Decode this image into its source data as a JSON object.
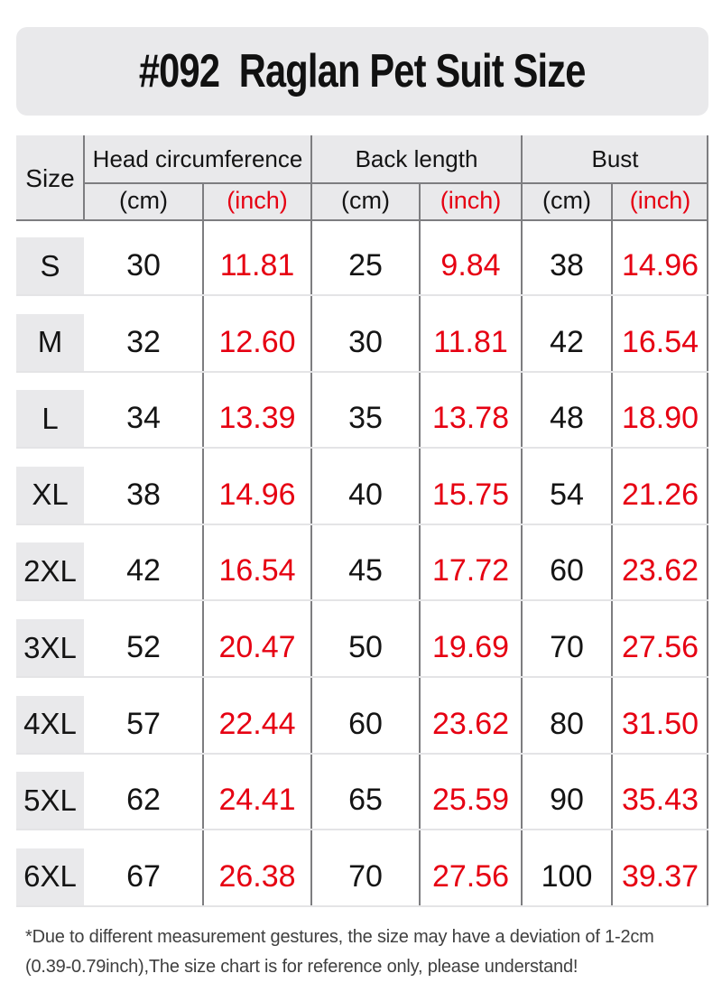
{
  "title": "#092  Raglan Pet Suit Size",
  "colors": {
    "accent_red": "#e60012",
    "panel_gray": "#e9e9eb",
    "grid_dark": "#7d7d80",
    "grid_light": "#e4e4e6",
    "text_black": "#141414",
    "footnote_gray": "#3f3f3f"
  },
  "table": {
    "size_header": "Size",
    "groups": [
      {
        "label": "Head circumference"
      },
      {
        "label": "Back length"
      },
      {
        "label": "Bust"
      }
    ],
    "unit_labels": [
      "(cm)",
      "(inch)",
      "(cm)",
      "(inch)",
      "(cm)",
      "(inch)"
    ],
    "rows": [
      {
        "size": "S",
        "values": [
          "30",
          "11.81",
          "25",
          "9.84",
          "38",
          "14.96"
        ]
      },
      {
        "size": "M",
        "values": [
          "32",
          "12.60",
          "30",
          "11.81",
          "42",
          "16.54"
        ]
      },
      {
        "size": "L",
        "values": [
          "34",
          "13.39",
          "35",
          "13.78",
          "48",
          "18.90"
        ]
      },
      {
        "size": "XL",
        "values": [
          "38",
          "14.96",
          "40",
          "15.75",
          "54",
          "21.26"
        ]
      },
      {
        "size": "2XL",
        "values": [
          "42",
          "16.54",
          "45",
          "17.72",
          "60",
          "23.62"
        ]
      },
      {
        "size": "3XL",
        "values": [
          "52",
          "20.47",
          "50",
          "19.69",
          "70",
          "27.56"
        ]
      },
      {
        "size": "4XL",
        "values": [
          "57",
          "22.44",
          "60",
          "23.62",
          "80",
          "31.50"
        ]
      },
      {
        "size": "5XL",
        "values": [
          "62",
          "24.41",
          "65",
          "25.59",
          "90",
          "35.43"
        ]
      },
      {
        "size": "6XL",
        "values": [
          "67",
          "26.38",
          "70",
          "27.56",
          "100",
          "39.37"
        ]
      }
    ]
  },
  "footnote": {
    "line1": "*Due to different measurement gestures, the size may have a deviation of 1-2cm",
    "line2": "(0.39-0.79inch),The size chart is for reference only, please understand!"
  }
}
